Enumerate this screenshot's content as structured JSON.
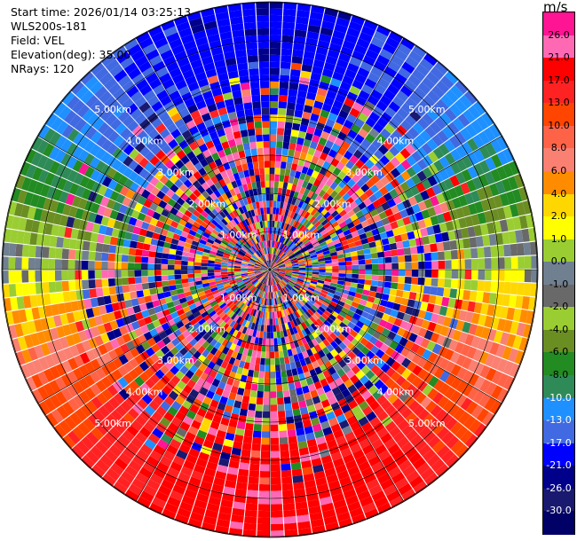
{
  "info": {
    "start_time": "Start time: 2026/01/14 03:25:13",
    "site": "WLS200s-181",
    "field": "Field: VEL",
    "elevation": "Elevation(deg): 35.00",
    "nrays": "NRays: 120"
  },
  "colorbar": {
    "unit": "m/s",
    "labels": [
      "26.0",
      "21.0",
      "17.0",
      "13.0",
      "10.0",
      "8.0",
      "6.0",
      "4.0",
      "2.0",
      "1.0",
      "0.0",
      "-1.0",
      "-2.0",
      "-4.0",
      "-6.0",
      "-8.0",
      "-10.0",
      "-13.0",
      "-17.0",
      "-21.0",
      "-26.0",
      "-30.0"
    ],
    "colors": [
      "#ff1493",
      "#ff69b4",
      "#ff0000",
      "#ff2222",
      "#ff4500",
      "#ff6347",
      "#fa8072",
      "#ff8c00",
      "#ffd700",
      "#ffff00",
      "#9acd32",
      "#708090",
      "#696969",
      "#9acd32",
      "#6b8e23",
      "#228b22",
      "#2e8b57",
      "#1e90ff",
      "#4169e1",
      "#0000ff",
      "#00008b",
      "#191970",
      "#000066"
    ]
  },
  "chart_data": {
    "type": "heatmap",
    "projection": "polar PPI",
    "field": "VEL",
    "unit": "m/s",
    "nrays": 120,
    "elevation_deg": 35.0,
    "range_ring_labels": [
      "1.00km",
      "2.00km",
      "3.00km",
      "4.00km",
      "5.00km"
    ],
    "color_levels": [
      -30.0,
      -26.0,
      -21.0,
      -17.0,
      -13.0,
      -10.0,
      -8.0,
      -6.0,
      -4.0,
      -2.0,
      -1.0,
      0.0,
      1.0,
      2.0,
      4.0,
      6.0,
      8.0,
      10.0,
      13.0,
      17.0,
      21.0,
      26.0
    ],
    "dominant_pattern": "Outer ranges: blue (negative, -17 to -21 m/s) toward the north, green/yellow (-8 to +4 m/s) toward the east and west, red (+17 to +21 m/s) toward the south; inner ranges noisy mixed values",
    "grid": true
  }
}
